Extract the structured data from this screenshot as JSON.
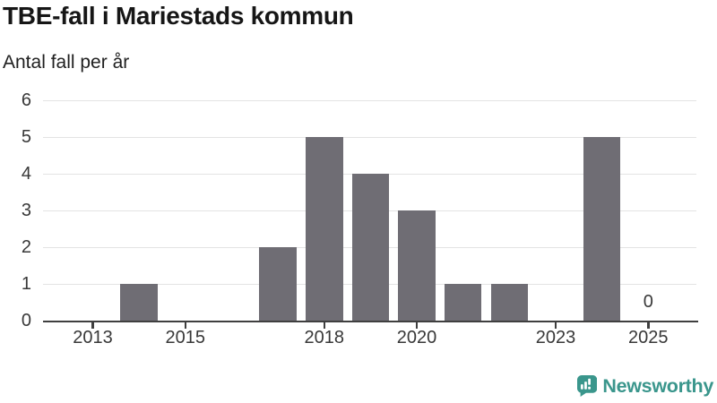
{
  "header": {
    "title": "TBE-fall i Mariestads kommun",
    "subtitle": "Antal fall per år"
  },
  "chart_data": {
    "type": "bar",
    "title": "TBE-fall i Mariestads kommun",
    "subtitle": "Antal fall per år",
    "x": [
      2013,
      2014,
      2015,
      2016,
      2017,
      2018,
      2019,
      2020,
      2021,
      2022,
      2023,
      2024,
      2025
    ],
    "values": [
      0,
      1,
      0,
      0,
      2,
      5,
      4,
      3,
      1,
      1,
      0,
      5,
      0
    ],
    "ylim": [
      0,
      6
    ],
    "yticks": [
      0,
      1,
      2,
      3,
      4,
      5,
      6
    ],
    "xtick_labels": [
      2013,
      2015,
      2018,
      2020,
      2023,
      2025
    ],
    "annotations": [
      {
        "x": 2025,
        "label": "0"
      }
    ],
    "grid": true,
    "legend": "none",
    "bar_color": "#6f6d74",
    "gridline_color": "#e3e3e3",
    "axis_color": "#3f3f3f",
    "tick_label_color": "#383838"
  },
  "footer": {
    "brand": "Newsworthy",
    "brand_color": "#3a968c",
    "logo_icon": "speech-bubble-bar-chart-icon"
  }
}
